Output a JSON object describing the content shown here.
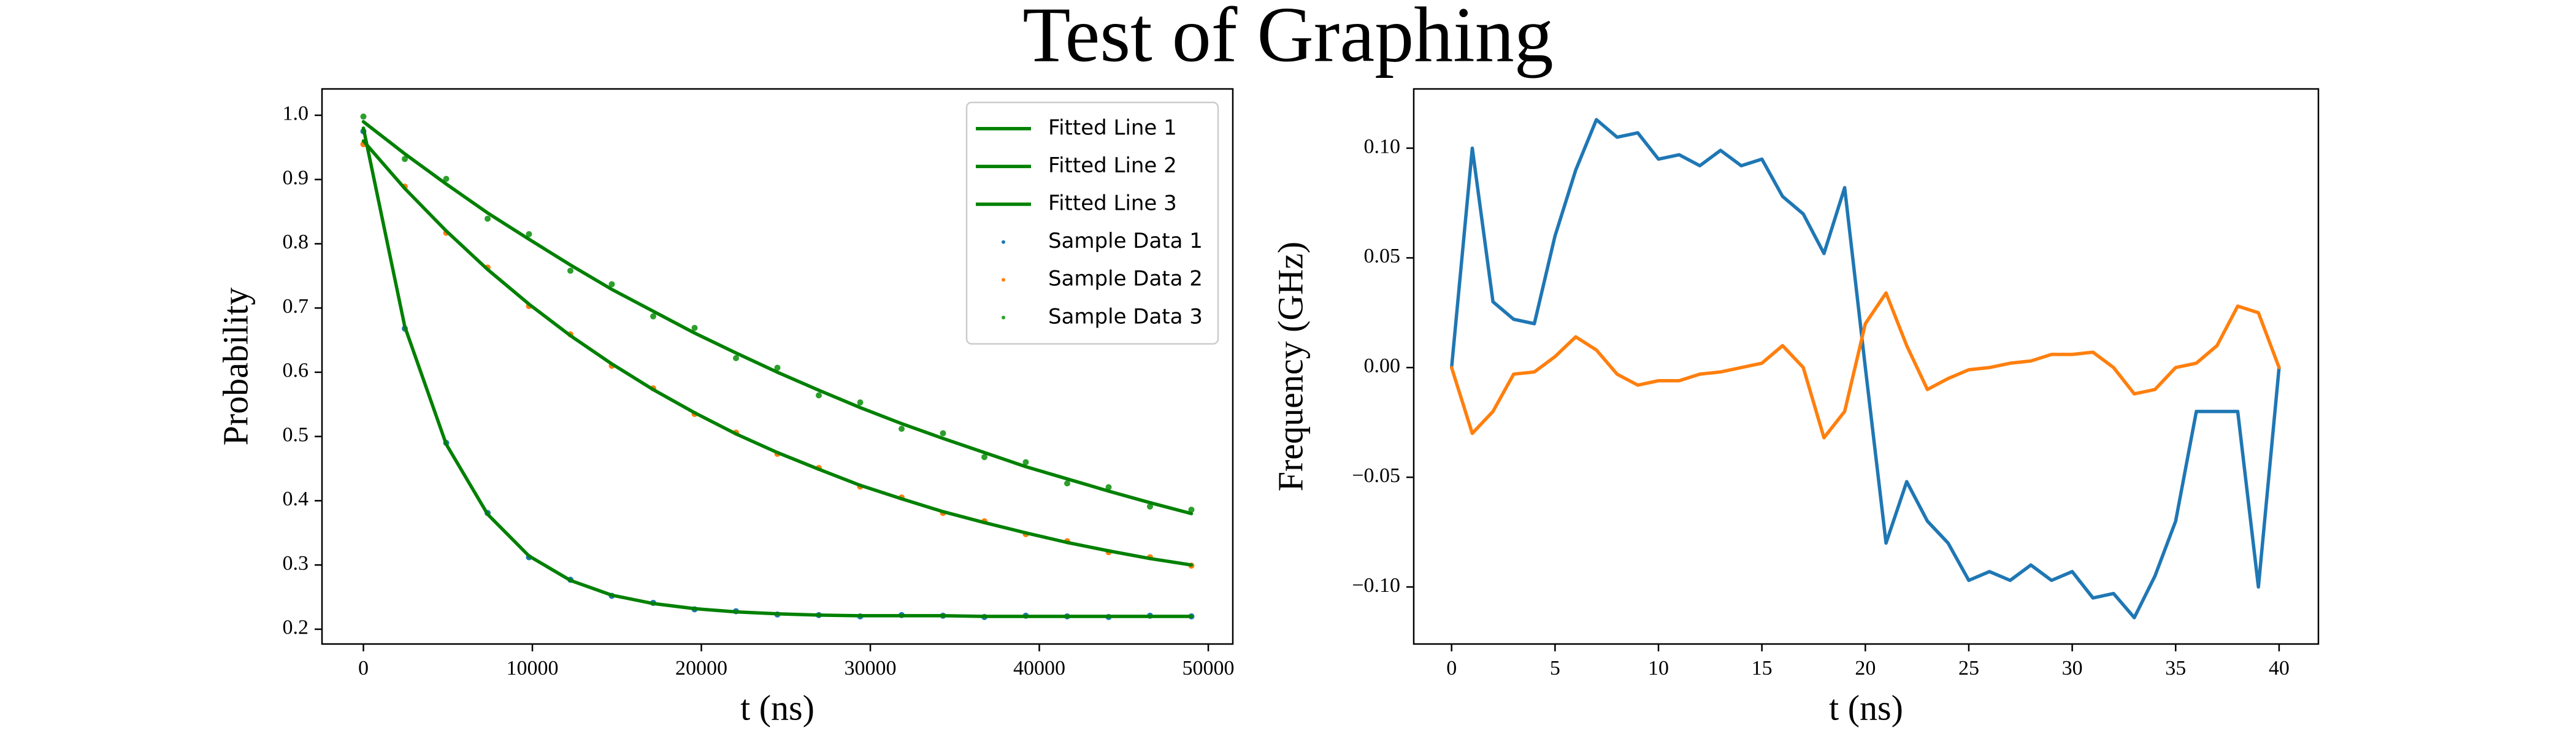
{
  "title": "Test of Graphing",
  "chart_data": [
    {
      "type": "line",
      "xlabel": "t (ns)",
      "ylabel": "Probability",
      "x": [
        0,
        2450,
        4900,
        7350,
        9800,
        12250,
        14700,
        17150,
        19600,
        22050,
        24500,
        26950,
        29400,
        31850,
        34300,
        36750,
        39200,
        41650,
        44100,
        46550,
        49000
      ],
      "xlim": [
        -2450,
        51450
      ],
      "ylim": [
        0.177,
        1.041
      ],
      "xticks": [
        0,
        10000,
        20000,
        30000,
        40000,
        50000
      ],
      "yticks": [
        0.2,
        0.3,
        0.4,
        0.5,
        0.6,
        0.7,
        0.8,
        0.9,
        {
          "value": 1,
          "label": "1.0"
        }
      ],
      "legend": "upper right",
      "series": [
        {
          "name": "Fitted Line 1",
          "color": "#008000",
          "kind": "line",
          "values": [
            0.98,
            0.671,
            0.488,
            0.379,
            0.314,
            0.276,
            0.253,
            0.24,
            0.232,
            0.227,
            0.224,
            0.222,
            0.221,
            0.221,
            0.221,
            0.22,
            0.22,
            0.22,
            0.22,
            0.22,
            0.22
          ]
        },
        {
          "name": "Fitted Line 2",
          "color": "#008000",
          "kind": "line",
          "values": [
            0.96,
            0.886,
            0.82,
            0.76,
            0.706,
            0.657,
            0.613,
            0.573,
            0.537,
            0.504,
            0.475,
            0.449,
            0.424,
            0.403,
            0.383,
            0.366,
            0.35,
            0.335,
            0.322,
            0.31,
            0.3
          ]
        },
        {
          "name": "Fitted Line 3",
          "color": "#008000",
          "kind": "line",
          "values": [
            0.99,
            0.94,
            0.893,
            0.848,
            0.807,
            0.767,
            0.729,
            0.695,
            0.661,
            0.63,
            0.6,
            0.572,
            0.545,
            0.52,
            0.497,
            0.475,
            0.453,
            0.434,
            0.415,
            0.397,
            0.38
          ]
        },
        {
          "name": "Sample Data 1",
          "color": "#1f77b4",
          "kind": "points",
          "values": [
            0.975,
            0.668,
            0.49,
            0.381,
            0.312,
            0.277,
            0.252,
            0.241,
            0.231,
            0.228,
            0.223,
            0.222,
            0.22,
            0.222,
            0.221,
            0.219,
            0.221,
            0.22,
            0.219,
            0.221,
            0.22
          ]
        },
        {
          "name": "Sample Data 2",
          "color": "#ff7f0e",
          "kind": "points",
          "values": [
            0.955,
            0.889,
            0.817,
            0.763,
            0.703,
            0.659,
            0.61,
            0.575,
            0.535,
            0.506,
            0.473,
            0.451,
            0.422,
            0.405,
            0.381,
            0.368,
            0.348,
            0.337,
            0.32,
            0.312,
            0.299
          ]
        },
        {
          "name": "Sample Data 3",
          "color": "#2ca02c",
          "kind": "points",
          "values": [
            0.998,
            0.932,
            0.901,
            0.839,
            0.815,
            0.758,
            0.737,
            0.687,
            0.669,
            0.622,
            0.607,
            0.564,
            0.553,
            0.512,
            0.505,
            0.468,
            0.46,
            0.427,
            0.421,
            0.391,
            0.386
          ]
        }
      ]
    },
    {
      "type": "line",
      "xlabel": "t (ns)",
      "ylabel": "Frequency  (GHz)",
      "x": [
        0,
        1,
        2,
        3,
        4,
        5,
        6,
        7,
        8,
        9,
        10,
        11,
        12,
        13,
        14,
        15,
        16,
        17,
        18,
        19,
        20,
        21,
        22,
        23,
        24,
        25,
        26,
        27,
        28,
        29,
        30,
        31,
        32,
        33,
        34,
        35,
        36,
        37,
        38,
        39,
        40
      ],
      "xlim": [
        -1.83,
        41.9
      ],
      "ylim": [
        -0.126,
        0.127
      ],
      "xticks": [
        0,
        5,
        10,
        15,
        20,
        25,
        30,
        35,
        40
      ],
      "yticks": [
        {
          "value": -0.1,
          "label": "−0.10"
        },
        {
          "value": -0.05,
          "label": "−0.05"
        },
        {
          "value": 0,
          "label": "0.00"
        },
        {
          "value": 0.05,
          "label": "0.05"
        },
        {
          "value": 0.1,
          "label": "0.10"
        }
      ],
      "series": [
        {
          "color": "#1f77b4",
          "kind": "line",
          "values": [
            0,
            0.1,
            0.03,
            0.022,
            0.02,
            0.06,
            0.09,
            0.113,
            0.105,
            0.107,
            0.095,
            0.097,
            0.092,
            0.099,
            0.092,
            0.095,
            0.078,
            0.07,
            0.052,
            0.082,
            0,
            -0.08,
            -0.052,
            -0.07,
            -0.08,
            -0.097,
            -0.093,
            -0.097,
            -0.09,
            -0.097,
            -0.093,
            -0.105,
            -0.103,
            -0.114,
            -0.095,
            -0.07,
            -0.02,
            -0.02,
            -0.02,
            -0.1,
            0
          ]
        },
        {
          "color": "#ff7f0e",
          "kind": "line",
          "values": [
            0,
            -0.03,
            -0.02,
            -0.003,
            -0.002,
            0.005,
            0.014,
            0.008,
            -0.003,
            -0.008,
            -0.006,
            -0.006,
            -0.003,
            -0.002,
            0,
            0.002,
            0.01,
            0,
            -0.032,
            -0.02,
            0.02,
            0.034,
            0.01,
            -0.01,
            -0.005,
            -0.001,
            0,
            0.002,
            0.003,
            0.006,
            0.006,
            0.007,
            0,
            -0.012,
            -0.01,
            0,
            0.002,
            0.01,
            0.028,
            0.025,
            0
          ]
        }
      ]
    }
  ]
}
